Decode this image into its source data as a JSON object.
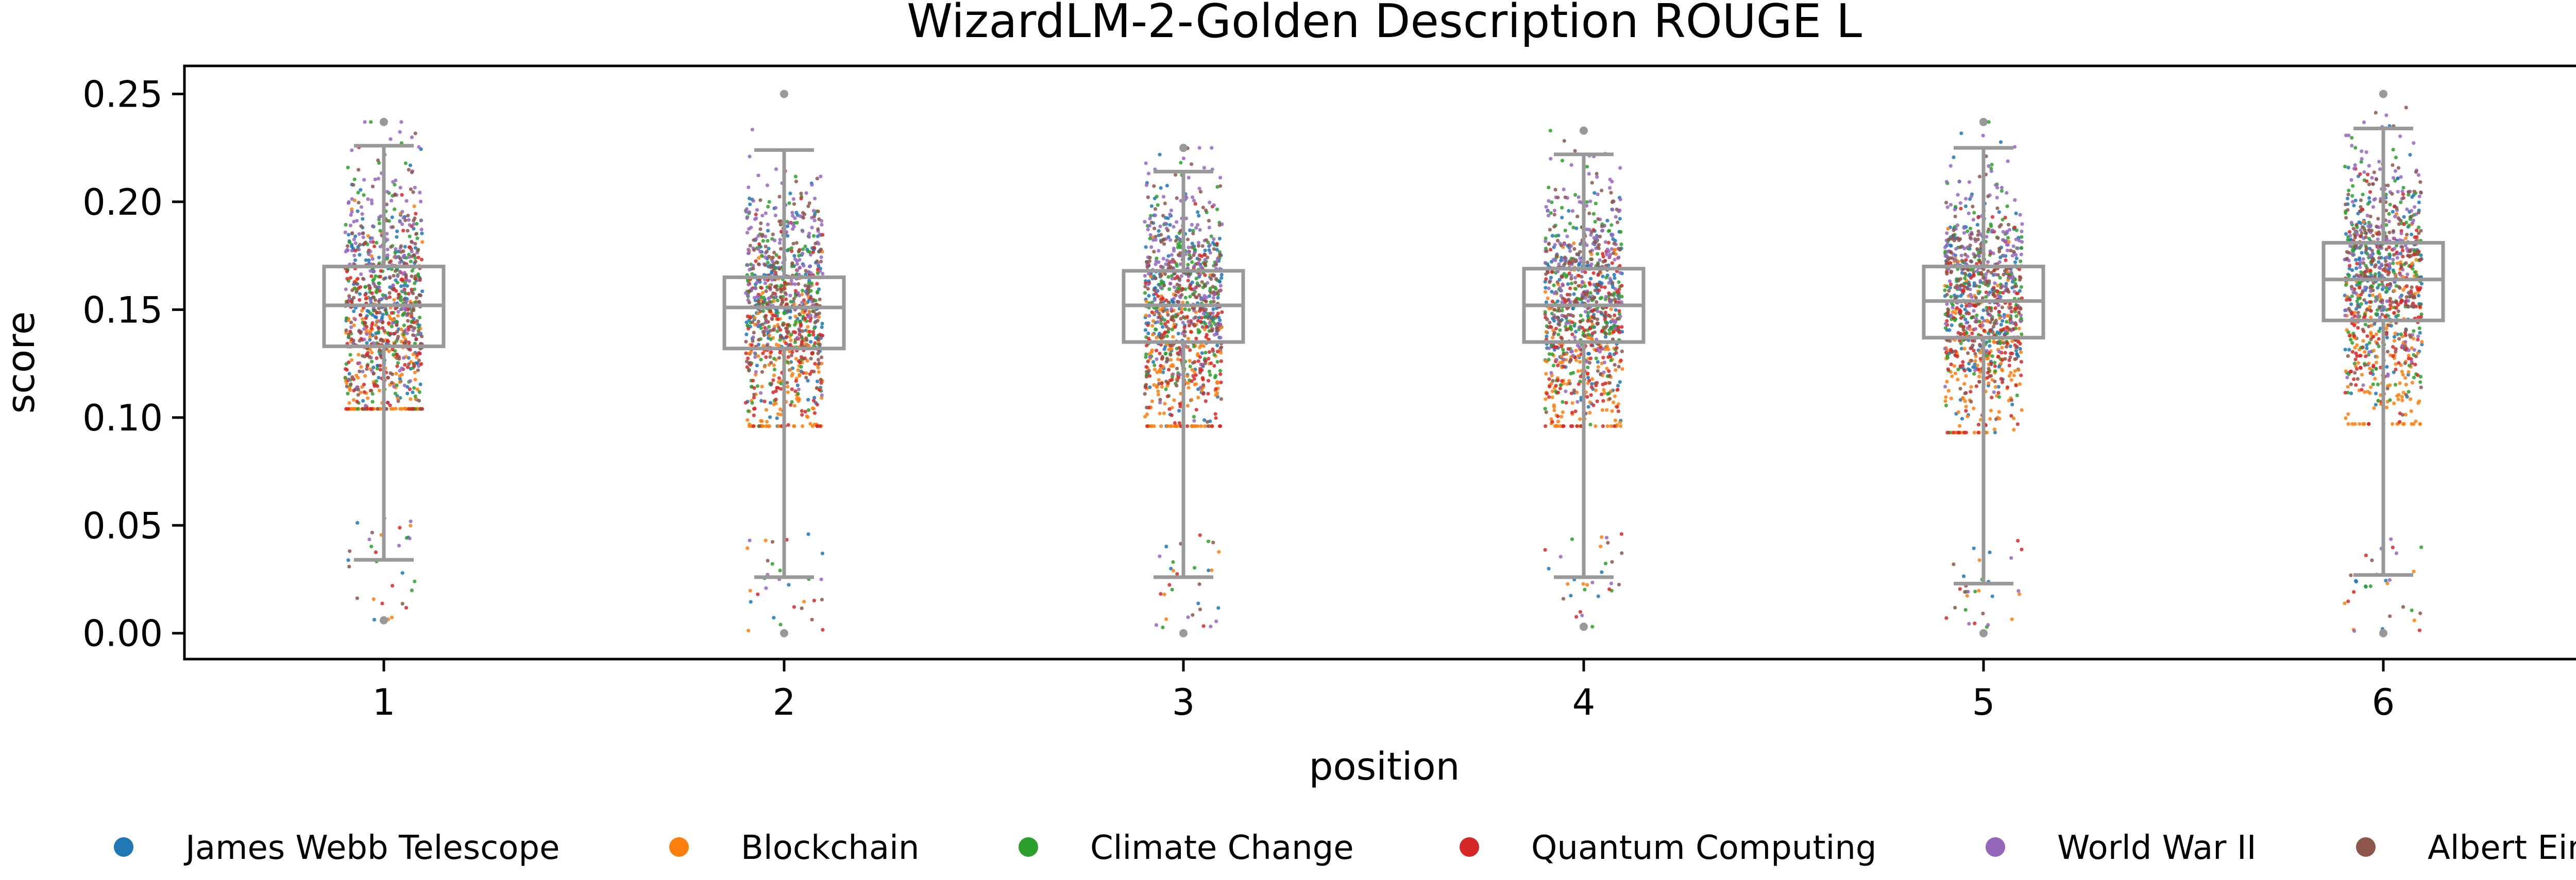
{
  "chart_data": {
    "type": "box",
    "title": "WizardLM-2-Golden Description ROUGE L",
    "xlabel": "position",
    "ylabel": "score",
    "ylim": [
      -0.012,
      0.263
    ],
    "yticks": [
      "0.00",
      "0.05",
      "0.10",
      "0.15",
      "0.20",
      "0.25"
    ],
    "ytick_values": [
      0,
      0.05,
      0.1,
      0.15,
      0.2,
      0.25
    ],
    "categories": [
      "1",
      "2",
      "3",
      "4",
      "5",
      "6"
    ],
    "grid": false,
    "legend_position": "bottom",
    "box_color": "#999999",
    "boxes": [
      {
        "position": "1",
        "whisker_low": 0.034,
        "q1": 0.133,
        "median": 0.152,
        "q3": 0.17,
        "whisker_high": 0.226,
        "max": 0.237,
        "min": 0.006
      },
      {
        "position": "2",
        "whisker_low": 0.026,
        "q1": 0.132,
        "median": 0.151,
        "q3": 0.165,
        "whisker_high": 0.224,
        "max": 0.25,
        "min": 0.0
      },
      {
        "position": "3",
        "whisker_low": 0.026,
        "q1": 0.135,
        "median": 0.152,
        "q3": 0.168,
        "whisker_high": 0.214,
        "max": 0.225,
        "min": 0.0
      },
      {
        "position": "4",
        "whisker_low": 0.026,
        "q1": 0.135,
        "median": 0.152,
        "q3": 0.169,
        "whisker_high": 0.222,
        "max": 0.233,
        "min": 0.003
      },
      {
        "position": "5",
        "whisker_low": 0.023,
        "q1": 0.137,
        "median": 0.154,
        "q3": 0.17,
        "whisker_high": 0.225,
        "max": 0.237,
        "min": 0.0
      },
      {
        "position": "6",
        "whisker_low": 0.027,
        "q1": 0.145,
        "median": 0.164,
        "q3": 0.181,
        "whisker_high": 0.234,
        "max": 0.25,
        "min": 0.0
      }
    ],
    "series": [
      {
        "name": "James Webb Telescope",
        "color": "#1f77b4",
        "mean_offset": 0.002
      },
      {
        "name": "Blockchain",
        "color": "#ff7f0e",
        "mean_offset": -0.028
      },
      {
        "name": "Climate Change",
        "color": "#2ca02c",
        "mean_offset": 0.004
      },
      {
        "name": "Quantum Computing",
        "color": "#d62728",
        "mean_offset": -0.014
      },
      {
        "name": "World War II",
        "color": "#9467bd",
        "mean_offset": 0.018
      },
      {
        "name": "Albert Einstein",
        "color": "#8c564b",
        "mean_offset": 0.006
      }
    ]
  }
}
